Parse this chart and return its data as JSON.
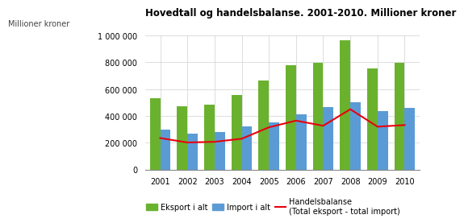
{
  "title": "Hovedtall og handelsbalanse. 2001-2010. Millioner kroner",
  "ylabel": "Millioner kroner",
  "years": [
    2001,
    2002,
    2003,
    2004,
    2005,
    2006,
    2007,
    2008,
    2009,
    2010
  ],
  "eksport": [
    530000,
    470000,
    485000,
    555000,
    665000,
    780000,
    795000,
    965000,
    755000,
    795000
  ],
  "import": [
    295000,
    268000,
    278000,
    325000,
    350000,
    415000,
    468000,
    502000,
    435000,
    463000
  ],
  "handelsbalanse": [
    235000,
    202000,
    207000,
    230000,
    315000,
    365000,
    327000,
    450000,
    320000,
    332000
  ],
  "eksport_color": "#6ab22e",
  "import_color": "#5b9bd5",
  "handelsbalanse_color": "#e8000d",
  "ylim": [
    0,
    1000000
  ],
  "yticks": [
    0,
    200000,
    400000,
    600000,
    800000,
    1000000
  ],
  "ytick_labels": [
    "0",
    "200 000",
    "400 000",
    "600 000",
    "800 000",
    "1 000 000"
  ],
  "title_fontsize": 8.5,
  "ylabel_fontsize": 7,
  "axis_fontsize": 7,
  "legend_fontsize": 7,
  "bar_width": 0.38,
  "background_color": "#ffffff",
  "grid_color": "#d0d0d0"
}
